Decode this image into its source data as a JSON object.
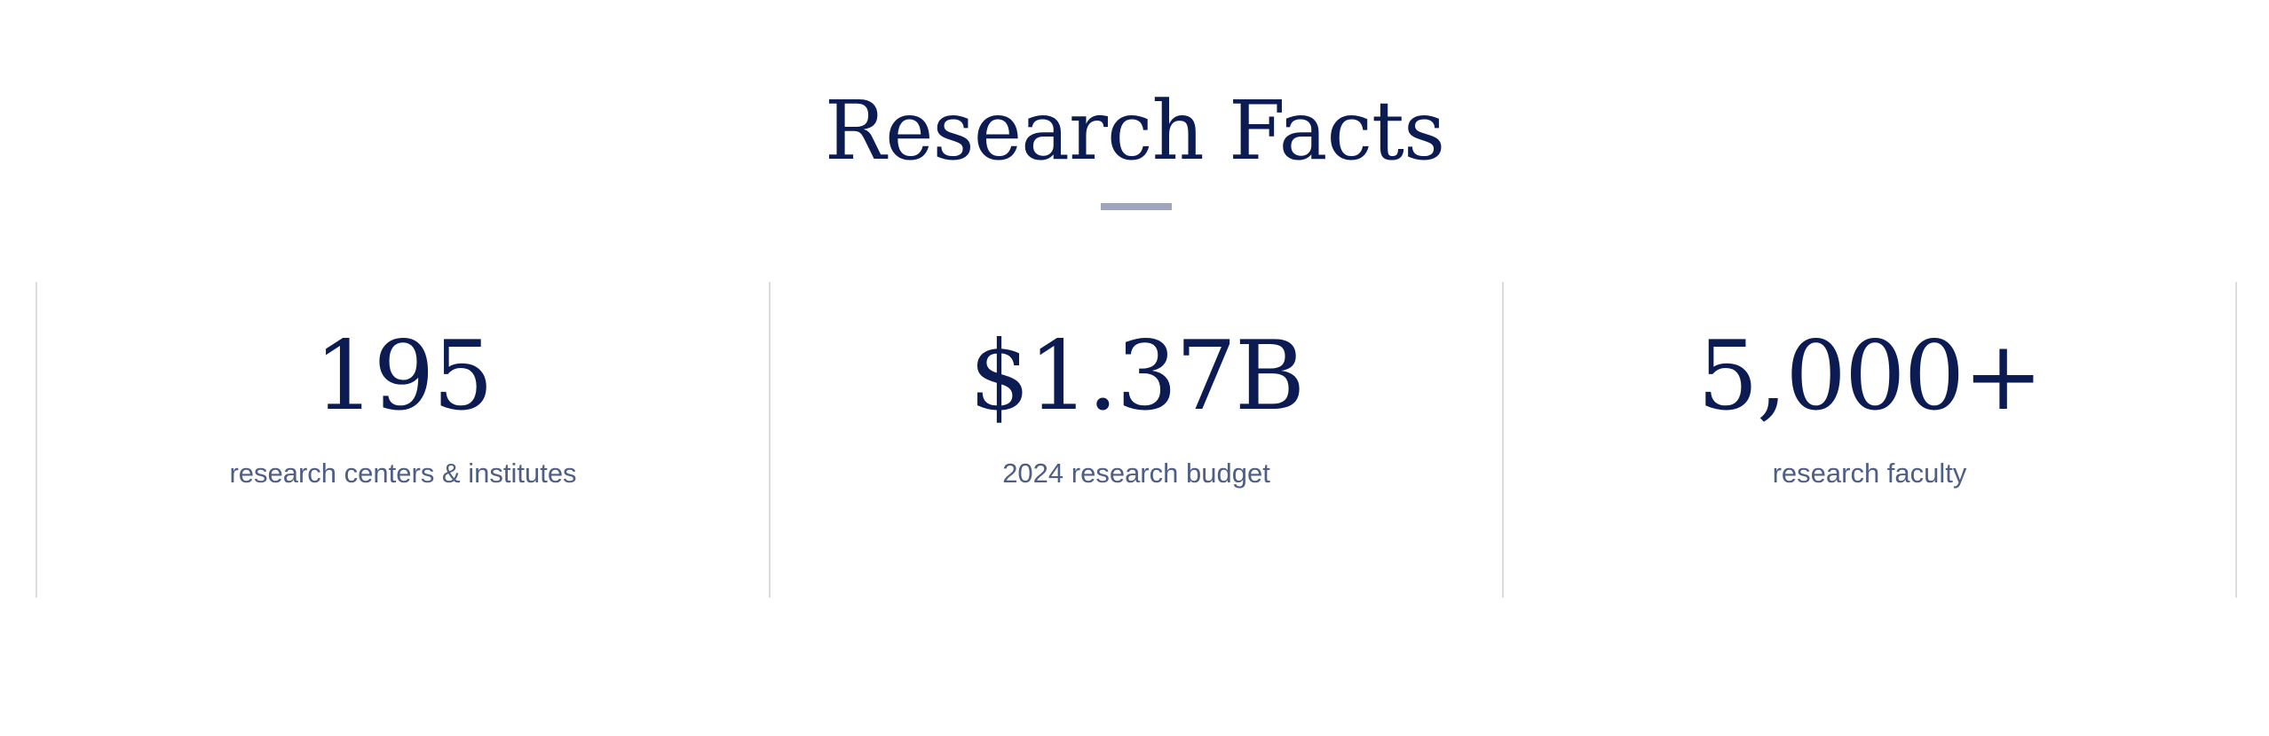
{
  "section": {
    "title": "Research Facts"
  },
  "facts": [
    {
      "value": "195",
      "label": "research centers & institutes"
    },
    {
      "value": "$1.37B",
      "label": "2024 research budget"
    },
    {
      "value": "5,000+",
      "label": "research faculty"
    }
  ],
  "colors": {
    "heading": "#0d1b53",
    "label": "#4f5e85",
    "rule": "#9ea5bd",
    "divider": "#dcdde3",
    "background": "#ffffff"
  }
}
